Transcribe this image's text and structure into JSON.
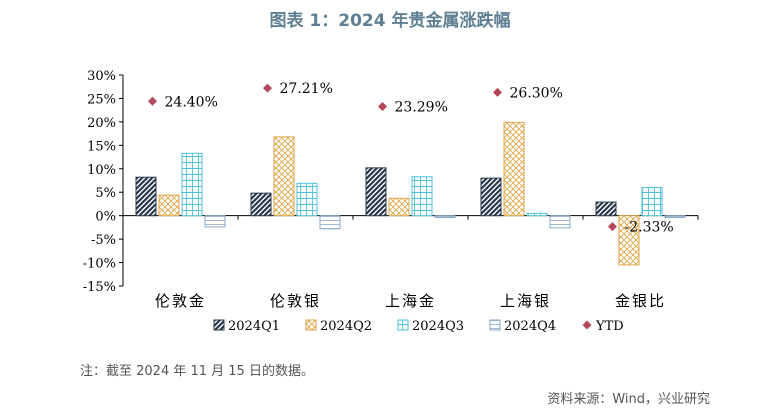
{
  "title": "图表 1：2024 年贵金属涨跌幅",
  "note": "注：截至 2024 年 11 月 15 日的数据。",
  "source": "资料来源：Wind，兴业研究",
  "chart_data": {
    "type": "bar",
    "categories": [
      "伦敦金",
      "伦敦银",
      "上海金",
      "上海银",
      "金银比"
    ],
    "ylim": [
      -15,
      30
    ],
    "yticks": [
      -15,
      -10,
      -5,
      0,
      5,
      10,
      15,
      20,
      25,
      30
    ],
    "ytick_labels": [
      "-15%",
      "-10%",
      "-5%",
      "0%",
      "5%",
      "10%",
      "15%",
      "20%",
      "25%",
      "30%"
    ],
    "legend_position": "bottom",
    "grid": false,
    "series": [
      {
        "name": "2024Q1",
        "values": [
          8.2,
          4.8,
          10.2,
          8.0,
          2.9
        ],
        "pattern": "diag",
        "color": "#2b3a4a"
      },
      {
        "name": "2024Q2",
        "values": [
          4.4,
          16.8,
          3.7,
          19.9,
          -10.5
        ],
        "pattern": "cross",
        "color": "#e0a64a"
      },
      {
        "name": "2024Q3",
        "values": [
          13.3,
          6.9,
          8.3,
          0.5,
          6.0
        ],
        "pattern": "grid",
        "color": "#4fc0d8"
      },
      {
        "name": "2024Q4",
        "values": [
          -2.4,
          -2.8,
          -0.4,
          -2.6,
          -0.4
        ],
        "pattern": "hlines",
        "color": "#8aa7c7"
      }
    ],
    "ytd": {
      "name": "YTD",
      "values": [
        24.4,
        27.21,
        23.29,
        26.3,
        -2.33
      ],
      "labels": [
        "24.40%",
        "27.21%",
        "23.29%",
        "26.30%",
        "-2.33%"
      ],
      "color": "#b5475a"
    }
  }
}
